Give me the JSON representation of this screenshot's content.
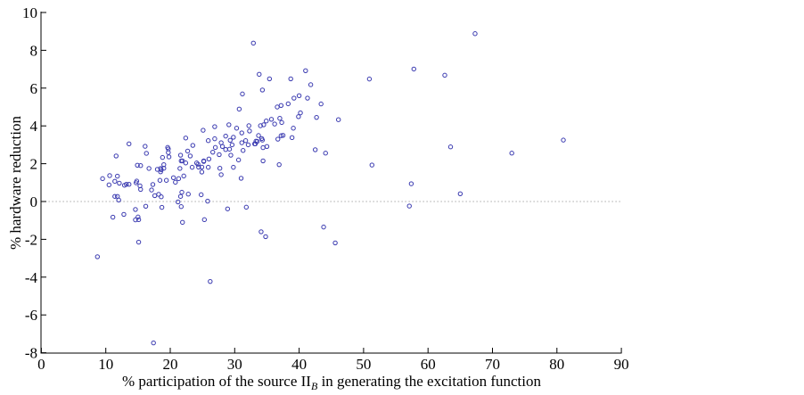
{
  "chart_data": {
    "type": "scatter",
    "title": "",
    "xlabel": {
      "prefix": "% participation of the source II",
      "subscript": "B",
      "suffix": " in generating the excitation function"
    },
    "ylabel": "% hardware reduction",
    "xlim": [
      0,
      90
    ],
    "ylim": [
      -8,
      10
    ],
    "xticks": [
      0,
      10,
      20,
      30,
      40,
      50,
      60,
      70,
      80,
      90
    ],
    "yticks": [
      -8,
      -6,
      -4,
      -2,
      0,
      2,
      4,
      6,
      8,
      10
    ],
    "xtick_labels": [
      "0",
      "10",
      "20",
      "30",
      "40",
      "50",
      "60",
      "70",
      "80",
      "90"
    ],
    "ytick_labels": [
      "-8",
      "-6",
      "-4",
      "-2",
      "0",
      "2",
      "4",
      "6",
      "8",
      "10"
    ],
    "grid": false,
    "reference_line": {
      "y": 0,
      "style": "dotted",
      "color": "#aaaaaa"
    },
    "marker": {
      "shape": "open-circle",
      "color": "#3a3ab0"
    },
    "points": [
      [
        8.7,
        -2.92
      ],
      [
        9.5,
        1.21
      ],
      [
        10.5,
        0.88
      ],
      [
        10.6,
        1.37
      ],
      [
        11.1,
        -0.83
      ],
      [
        11.4,
        0.27
      ],
      [
        11.4,
        1.07
      ],
      [
        11.6,
        2.41
      ],
      [
        11.8,
        1.34
      ],
      [
        11.8,
        0.27
      ],
      [
        12.0,
        0.08
      ],
      [
        12.1,
        0.97
      ],
      [
        12.8,
        -0.68
      ],
      [
        12.9,
        0.86
      ],
      [
        13.2,
        0.91
      ],
      [
        13.6,
        0.91
      ],
      [
        13.6,
        3.05
      ],
      [
        14.6,
        -0.42
      ],
      [
        14.6,
        -0.97
      ],
      [
        14.7,
        0.99
      ],
      [
        14.8,
        1.08
      ],
      [
        14.9,
        1.92
      ],
      [
        15.0,
        -0.82
      ],
      [
        15.1,
        -0.96
      ],
      [
        15.1,
        -2.15
      ],
      [
        15.3,
        0.83
      ],
      [
        15.4,
        1.9
      ],
      [
        15.4,
        0.64
      ],
      [
        16.1,
        2.92
      ],
      [
        16.2,
        -0.25
      ],
      [
        16.3,
        2.55
      ],
      [
        16.7,
        1.75
      ],
      [
        17.1,
        0.61
      ],
      [
        17.3,
        0.9
      ],
      [
        17.4,
        -7.48
      ],
      [
        17.6,
        0.31
      ],
      [
        18.0,
        1.7
      ],
      [
        18.2,
        0.38
      ],
      [
        18.4,
        1.12
      ],
      [
        18.5,
        1.57
      ],
      [
        18.5,
        1.75
      ],
      [
        18.6,
        1.68
      ],
      [
        18.6,
        0.25
      ],
      [
        18.7,
        -0.31
      ],
      [
        18.8,
        2.33
      ],
      [
        19.0,
        1.95
      ],
      [
        19.0,
        1.76
      ],
      [
        19.4,
        1.12
      ],
      [
        19.6,
        2.86
      ],
      [
        19.7,
        2.78
      ],
      [
        19.7,
        2.59
      ],
      [
        19.8,
        2.36
      ],
      [
        20.5,
        1.26
      ],
      [
        20.8,
        1.02
      ],
      [
        21.2,
        -0.02
      ],
      [
        21.3,
        1.21
      ],
      [
        21.5,
        1.75
      ],
      [
        21.6,
        2.45
      ],
      [
        21.6,
        0.27
      ],
      [
        21.7,
        -0.27
      ],
      [
        21.7,
        2.15
      ],
      [
        21.8,
        0.49
      ],
      [
        21.9,
        2.15
      ],
      [
        21.9,
        -1.1
      ],
      [
        22.1,
        1.35
      ],
      [
        22.4,
        2.04
      ],
      [
        22.4,
        3.36
      ],
      [
        22.7,
        2.67
      ],
      [
        22.8,
        0.39
      ],
      [
        23.1,
        2.41
      ],
      [
        23.4,
        1.81
      ],
      [
        23.5,
        2.97
      ],
      [
        24.1,
        2.04
      ],
      [
        24.3,
        1.97
      ],
      [
        24.4,
        1.82
      ],
      [
        24.8,
        0.36
      ],
      [
        24.9,
        1.82
      ],
      [
        24.9,
        1.56
      ],
      [
        25.1,
        3.77
      ],
      [
        25.2,
        2.12
      ],
      [
        25.2,
        2.15
      ],
      [
        25.3,
        -0.96
      ],
      [
        25.8,
        0.02
      ],
      [
        25.9,
        1.81
      ],
      [
        26.0,
        2.25
      ],
      [
        25.9,
        3.22
      ],
      [
        26.2,
        -4.23
      ],
      [
        26.6,
        2.61
      ],
      [
        26.9,
        3.96
      ],
      [
        26.9,
        3.32
      ],
      [
        27.0,
        2.86
      ],
      [
        27.6,
        2.48
      ],
      [
        27.7,
        1.76
      ],
      [
        27.9,
        3.11
      ],
      [
        27.9,
        1.42
      ],
      [
        28.1,
        2.91
      ],
      [
        28.6,
        3.46
      ],
      [
        28.6,
        2.75
      ],
      [
        28.9,
        -0.39
      ],
      [
        29.1,
        4.06
      ],
      [
        29.2,
        2.77
      ],
      [
        29.3,
        3.24
      ],
      [
        29.4,
        2.45
      ],
      [
        29.6,
        3.0
      ],
      [
        29.8,
        1.81
      ],
      [
        29.8,
        3.4
      ],
      [
        30.3,
        3.88
      ],
      [
        30.6,
        2.2
      ],
      [
        30.7,
        4.89
      ],
      [
        31.0,
        1.23
      ],
      [
        31.1,
        3.63
      ],
      [
        31.2,
        5.69
      ],
      [
        31.1,
        3.11
      ],
      [
        31.3,
        2.7
      ],
      [
        31.7,
        3.22
      ],
      [
        31.8,
        -0.3
      ],
      [
        32.1,
        3.0
      ],
      [
        32.2,
        4.01
      ],
      [
        32.3,
        3.73
      ],
      [
        32.9,
        8.38
      ],
      [
        33.1,
        3.05
      ],
      [
        33.3,
        3.19
      ],
      [
        33.7,
        3.49
      ],
      [
        33.8,
        6.73
      ],
      [
        34.0,
        4.01
      ],
      [
        34.1,
        -1.6
      ],
      [
        34.2,
        3.33
      ],
      [
        34.3,
        5.9
      ],
      [
        34.4,
        2.15
      ],
      [
        34.4,
        2.85
      ],
      [
        34.5,
        4.06
      ],
      [
        34.8,
        -1.86
      ],
      [
        35.4,
        6.49
      ],
      [
        38.7,
        6.49
      ],
      [
        41.0,
        6.92
      ],
      [
        41.8,
        6.18
      ],
      [
        40.0,
        5.6
      ],
      [
        39.2,
        5.47
      ],
      [
        41.3,
        5.47
      ],
      [
        43.4,
        5.16
      ],
      [
        38.3,
        5.17
      ],
      [
        37.2,
        5.08
      ],
      [
        36.6,
        5.0
      ],
      [
        40.2,
        4.69
      ],
      [
        39.9,
        4.49
      ],
      [
        42.7,
        4.45
      ],
      [
        46.1,
        4.33
      ],
      [
        37.0,
        4.4
      ],
      [
        37.3,
        4.18
      ],
      [
        35.7,
        4.35
      ],
      [
        36.2,
        4.1
      ],
      [
        34.9,
        4.26
      ],
      [
        39.1,
        3.88
      ],
      [
        37.5,
        3.5
      ],
      [
        37.2,
        3.48
      ],
      [
        36.7,
        3.3
      ],
      [
        38.9,
        3.38
      ],
      [
        42.5,
        2.74
      ],
      [
        44.1,
        2.56
      ],
      [
        36.9,
        1.95
      ],
      [
        35.0,
        2.91
      ],
      [
        34.3,
        3.25
      ],
      [
        33.2,
        3.05
      ],
      [
        33.5,
        3.18
      ],
      [
        43.8,
        -1.35
      ],
      [
        45.6,
        -2.19
      ],
      [
        67.3,
        8.88
      ],
      [
        57.8,
        7.01
      ],
      [
        50.9,
        6.48
      ],
      [
        62.6,
        6.68
      ],
      [
        81.0,
        3.25
      ],
      [
        63.5,
        2.89
      ],
      [
        73.0,
        2.56
      ],
      [
        51.3,
        1.93
      ],
      [
        57.4,
        0.94
      ],
      [
        65.0,
        0.41
      ],
      [
        57.1,
        -0.24
      ]
    ]
  }
}
